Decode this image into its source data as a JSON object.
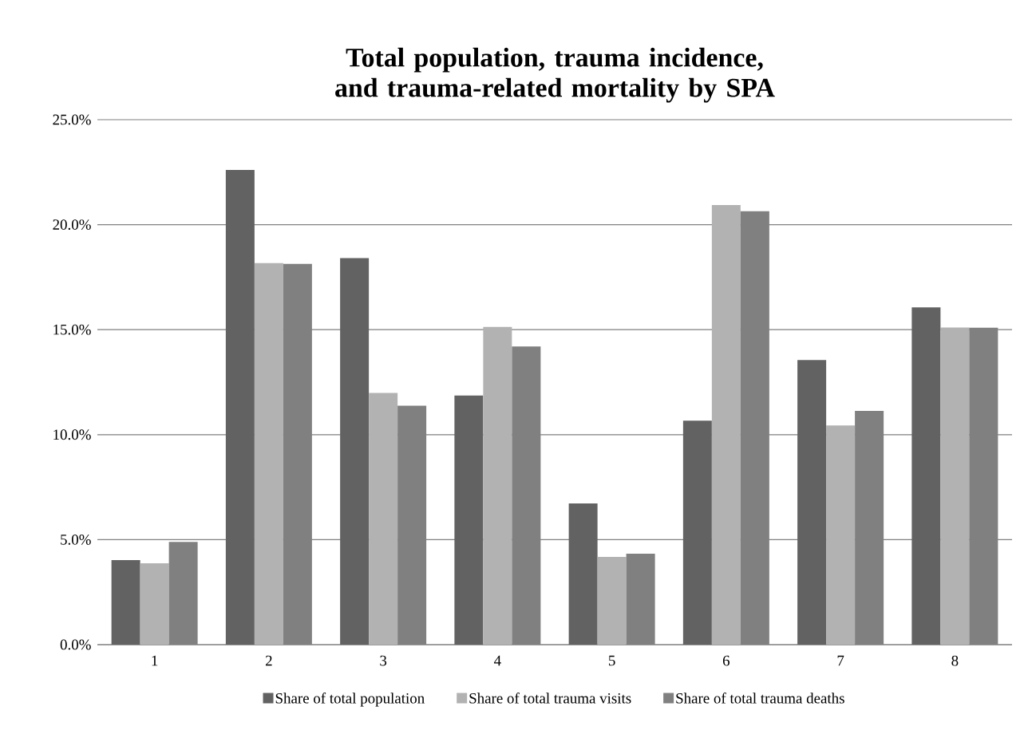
{
  "chart_data": {
    "type": "bar",
    "title": "Total population, trauma incidence, and trauma-related mortality by SPA",
    "categories": [
      "1",
      "2",
      "3",
      "4",
      "5",
      "6",
      "7",
      "8"
    ],
    "series": [
      {
        "name": "Share of total population",
        "color": "#626262",
        "values": [
          4.03,
          22.61,
          18.41,
          11.86,
          6.72,
          10.67,
          13.55,
          16.06
        ]
      },
      {
        "name": "Share of total trauma visits",
        "color": "#b2b2b2",
        "values": [
          3.87,
          18.17,
          11.99,
          15.13,
          4.18,
          20.93,
          10.44,
          15.1
        ]
      },
      {
        "name": "Share of total trauma deaths",
        "color": "#808080",
        "values": [
          4.89,
          18.13,
          11.38,
          14.2,
          4.33,
          20.64,
          11.13,
          15.09
        ]
      }
    ],
    "ylim": [
      0,
      25
    ],
    "yticks": [
      {
        "value": 0,
        "label": "0.0%"
      },
      {
        "value": 5,
        "label": "5.0%"
      },
      {
        "value": 10,
        "label": "10.0%"
      },
      {
        "value": 15,
        "label": "15.0%"
      },
      {
        "value": 20,
        "label": "20.0%"
      },
      {
        "value": 25,
        "label": "25.0%"
      }
    ],
    "grid": "y",
    "legend": "bottom"
  }
}
